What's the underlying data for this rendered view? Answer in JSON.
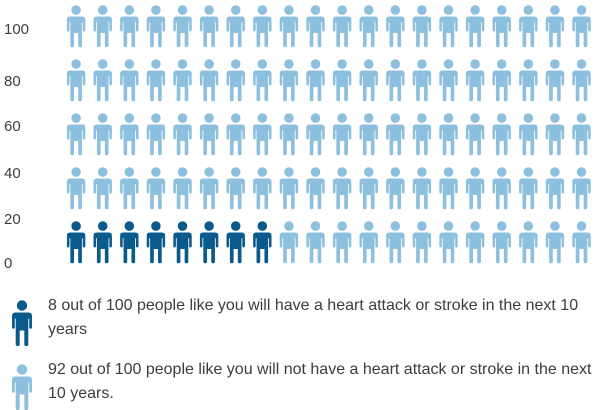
{
  "chart_data": {
    "type": "pictogram",
    "total": 100,
    "affected": 8,
    "unaffected": 92,
    "rows": 5,
    "columns": 20,
    "y_ticks": [
      "0",
      "20",
      "40",
      "60",
      "80",
      "100"
    ],
    "colors": {
      "affected": "#0b5a8c",
      "unaffected": "#8dc0de"
    },
    "icon": "person-icon"
  },
  "legend": [
    {
      "icon": "person-icon",
      "color": "#0b5a8c",
      "text": "8 out of 100 people like you will have a heart attack or stroke in the next 10 years"
    },
    {
      "icon": "person-icon",
      "color": "#8dc0de",
      "text": "92 out of 100 people like you will not have a heart attack or stroke in the next 10 years."
    }
  ]
}
